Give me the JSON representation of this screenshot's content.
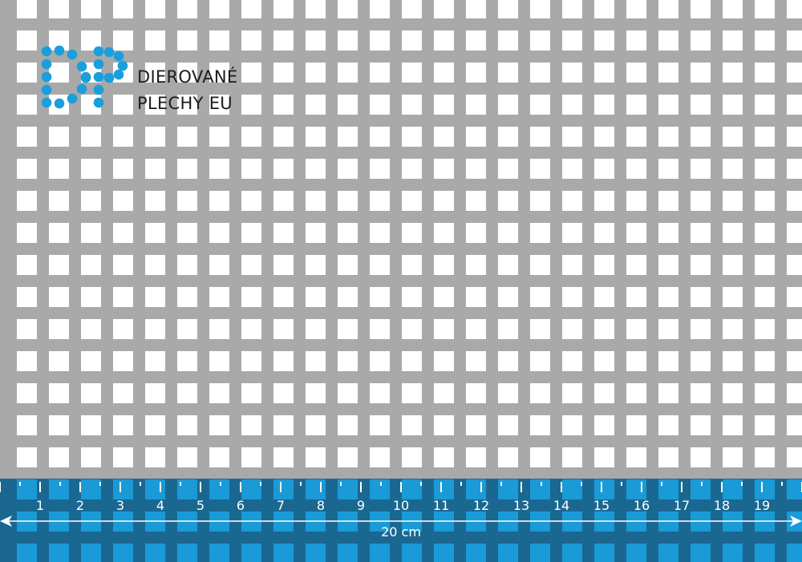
{
  "brand": {
    "line1": "DIEROVANÉ",
    "line2": "PLECHY EU",
    "logo_letters": "DP",
    "logo_color": "#1a9fdc"
  },
  "pattern": {
    "type": "square-hole perforated sheet",
    "metal_color": "#a9a9a9",
    "hole_color": "#ffffff"
  },
  "ruler": {
    "band_color": "#1a6891",
    "hole_color": "#1a9ad6",
    "labels": [
      "1",
      "2",
      "3",
      "4",
      "5",
      "6",
      "7",
      "8",
      "9",
      "10",
      "11",
      "12",
      "13",
      "14",
      "15",
      "16",
      "17",
      "18",
      "19"
    ],
    "total_label": "20 cm"
  }
}
